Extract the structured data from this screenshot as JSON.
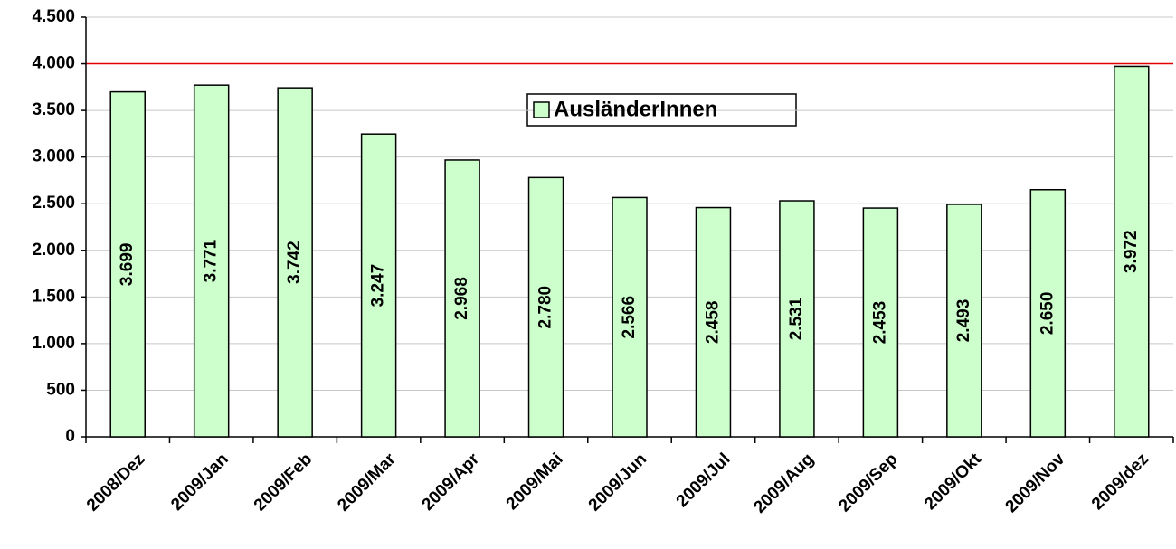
{
  "chart_data": {
    "type": "bar",
    "categories": [
      "2008/Dez",
      "2009/Jan",
      "2009/Feb",
      "2009/Mar",
      "2009/Apr",
      "2009/Mai",
      "2009/Jun",
      "2009/Jul",
      "2009/Aug",
      "2009/Sep",
      "2009/Okt",
      "2009/Nov",
      "2009/dez"
    ],
    "series": [
      {
        "name": "AusländerInnen",
        "color": "#ccffcc",
        "values": [
          3699,
          3771,
          3742,
          3247,
          2968,
          2780,
          2566,
          2458,
          2531,
          2453,
          2493,
          2650,
          3972
        ],
        "value_labels": [
          "3.699",
          "3.771",
          "3.742",
          "3.247",
          "2.968",
          "2.780",
          "2.566",
          "2.458",
          "2.531",
          "2.453",
          "2.493",
          "2.650",
          "3.972"
        ]
      }
    ],
    "ylim": [
      0,
      4500
    ],
    "yticks": [
      0,
      500,
      {
        "value": 1000,
        "label": "1.000"
      },
      {
        "value": 1500,
        "label": "1.500"
      },
      {
        "value": 2000,
        "label": "2.000"
      },
      {
        "value": 2500,
        "label": "2.500"
      },
      {
        "value": 3000,
        "label": "3.000"
      },
      {
        "value": 3500,
        "label": "3.500"
      },
      {
        "value": 4000,
        "label": "4.000"
      },
      {
        "value": 4500,
        "label": "4.500"
      }
    ],
    "grid": true,
    "reference_line": {
      "value": 4000,
      "color": "#e00000"
    }
  }
}
